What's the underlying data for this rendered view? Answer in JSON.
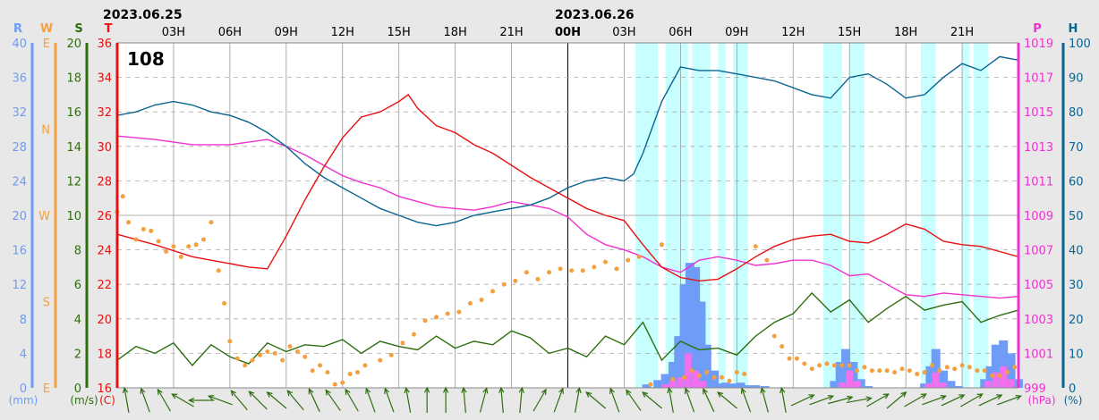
{
  "chart_data": {
    "type": "line",
    "station_id": "108",
    "dates": [
      "2023.06.25",
      "2023.06.26"
    ],
    "x_labels": [
      "03H",
      "06H",
      "09H",
      "12H",
      "15H",
      "18H",
      "21H",
      "00H",
      "03H",
      "06H",
      "09H",
      "12H",
      "15H",
      "18H",
      "21H"
    ],
    "x_hours": [
      3,
      6,
      9,
      12,
      15,
      18,
      21,
      24,
      27,
      30,
      33,
      36,
      39,
      42,
      45
    ],
    "x_range_hours": [
      0,
      48
    ],
    "axes": {
      "R": {
        "letter": "R",
        "unit": "(mm)",
        "ticks": [
          "40",
          "36",
          "32",
          "28",
          "24",
          "20",
          "16",
          "12",
          "8",
          "4",
          "0"
        ],
        "range": [
          0,
          40
        ],
        "color": "#6e9cf6"
      },
      "W": {
        "letter": "W",
        "unit": "",
        "ticks": [
          "E",
          "N",
          "W",
          "S",
          "E"
        ],
        "color": "#f4a040"
      },
      "S": {
        "letter": "S",
        "unit": "(m/s)",
        "ticks": [
          "20",
          "18",
          "16",
          "14",
          "12",
          "10",
          "8",
          "6",
          "4",
          "2",
          "0"
        ],
        "range": [
          0,
          20
        ],
        "color": "#2e6e0e"
      },
      "T": {
        "letter": "T",
        "unit": "(C)",
        "ticks": [
          "36",
          "34",
          "32",
          "30",
          "28",
          "26",
          "24",
          "22",
          "20",
          "18",
          "16"
        ],
        "range": [
          16,
          36
        ],
        "color": "#e81010"
      },
      "P": {
        "letter": "P",
        "unit": "(hPa)",
        "ticks": [
          "1019",
          "1017",
          "1015",
          "1013",
          "1011",
          "1009",
          "1007",
          "1005",
          "1003",
          "1001",
          "999"
        ],
        "range": [
          999,
          1019
        ],
        "color": "#f030d0"
      },
      "H": {
        "letter": "H",
        "unit": "(%)",
        "ticks": [
          "100",
          "90",
          "80",
          "70",
          "60",
          "50",
          "40",
          "30",
          "20",
          "10",
          "0"
        ],
        "range": [
          0,
          100
        ],
        "color": "#0a6490"
      }
    },
    "series": [
      {
        "key": "T",
        "name": "T",
        "color": "#e81010",
        "x": [
          0,
          2,
          4,
          6,
          7,
          8,
          9,
          10,
          11,
          12,
          13,
          14,
          15,
          15.5,
          16,
          17,
          18,
          19,
          20,
          21,
          22,
          23,
          24,
          25,
          26,
          27,
          28,
          29,
          30,
          31,
          32,
          33,
          34,
          35,
          36,
          37,
          38,
          39,
          40,
          41,
          42,
          43,
          44,
          45,
          46,
          47,
          48
        ],
        "y": [
          24.9,
          24.3,
          23.6,
          23.2,
          23.0,
          22.9,
          24.8,
          26.9,
          28.8,
          30.5,
          31.7,
          32.0,
          32.6,
          33.0,
          32.2,
          31.2,
          30.8,
          30.1,
          29.6,
          28.9,
          28.2,
          27.6,
          27.0,
          26.4,
          26.0,
          25.7,
          24.3,
          23.0,
          22.4,
          22.2,
          22.3,
          22.9,
          23.6,
          24.2,
          24.6,
          24.8,
          24.9,
          24.5,
          24.4,
          24.9,
          25.5,
          25.2,
          24.5,
          24.3,
          24.2,
          23.9,
          23.6
        ]
      },
      {
        "key": "H",
        "name": "H",
        "color": "#0a6490",
        "x": [
          0,
          1,
          2,
          3,
          4,
          5,
          6,
          7,
          8,
          9,
          10,
          11,
          12,
          13,
          14,
          15,
          16,
          17,
          18,
          19,
          20,
          21,
          22,
          23,
          24,
          25,
          26,
          27,
          27.5,
          28,
          29,
          30,
          31,
          32,
          33,
          34,
          35,
          36,
          37,
          38,
          39,
          40,
          41,
          42,
          43,
          44,
          45,
          46,
          47,
          48
        ],
        "y": [
          79,
          80,
          82,
          83,
          82,
          80,
          79,
          77,
          74,
          70,
          65,
          61,
          58,
          55,
          52,
          50,
          48,
          47,
          48,
          50,
          51,
          52,
          53,
          55,
          58,
          60,
          61,
          60,
          62,
          68,
          83,
          93,
          92,
          92,
          91,
          90,
          89,
          87,
          85,
          84,
          90,
          91,
          88,
          84,
          85,
          90,
          94,
          92,
          96,
          95
        ]
      },
      {
        "key": "P",
        "name": "P",
        "color": "#f030d0",
        "x": [
          0,
          2,
          4,
          6,
          8,
          9,
          10,
          11,
          12,
          13,
          14,
          15,
          16,
          17,
          18,
          19,
          20,
          21,
          22,
          23,
          24,
          25,
          26,
          27,
          28,
          29,
          30,
          31,
          32,
          33,
          34,
          35,
          36,
          37,
          38,
          39,
          40,
          41,
          42,
          43,
          44,
          45,
          46,
          47,
          48
        ],
        "y": [
          1013.6,
          1013.4,
          1013.1,
          1013.1,
          1013.4,
          1013.0,
          1012.5,
          1011.9,
          1011.3,
          1010.9,
          1010.6,
          1010.1,
          1009.8,
          1009.5,
          1009.4,
          1009.3,
          1009.5,
          1009.8,
          1009.6,
          1009.4,
          1008.9,
          1007.9,
          1007.3,
          1007.0,
          1006.6,
          1006.0,
          1005.7,
          1006.4,
          1006.6,
          1006.4,
          1006.1,
          1006.2,
          1006.4,
          1006.4,
          1006.1,
          1005.5,
          1005.6,
          1005.0,
          1004.4,
          1004.3,
          1004.5,
          1004.4,
          1004.3,
          1004.2,
          1004.3
        ]
      },
      {
        "key": "S",
        "name": "S",
        "color": "#2e6e0e",
        "x": [
          0,
          1,
          2,
          3,
          4,
          5,
          6,
          7,
          8,
          9,
          10,
          11,
          12,
          13,
          14,
          15,
          16,
          17,
          18,
          19,
          20,
          21,
          22,
          23,
          24,
          25,
          26,
          27,
          28,
          29,
          30,
          31,
          32,
          33,
          34,
          35,
          36,
          37,
          38,
          39,
          40,
          41,
          42,
          43,
          44,
          45,
          46,
          47,
          48
        ],
        "y": [
          1.6,
          2.4,
          2.0,
          2.6,
          1.3,
          2.5,
          1.8,
          1.4,
          2.6,
          2.1,
          2.5,
          2.4,
          2.8,
          2.0,
          2.7,
          2.4,
          2.2,
          3.0,
          2.3,
          2.7,
          2.5,
          3.3,
          2.9,
          2.0,
          2.3,
          1.8,
          3.0,
          2.5,
          3.8,
          1.6,
          2.7,
          2.2,
          2.3,
          1.9,
          3.0,
          3.8,
          4.3,
          5.5,
          4.4,
          5.1,
          3.8,
          4.6,
          5.3,
          4.5,
          4.8,
          5.0,
          3.8,
          4.2,
          4.5
        ]
      },
      {
        "key": "R",
        "name": "R",
        "color": "#6e9cf6",
        "x": [
          28.2,
          28.8,
          29.2,
          29.6,
          29.9,
          30.2,
          30.5,
          30.8,
          31.1,
          31.4,
          31.8,
          32.1,
          32.4,
          32.8,
          33.2,
          33.6,
          34.0,
          34.5,
          38.2,
          38.5,
          38.8,
          39.2,
          39.6,
          40.0,
          43.0,
          43.3,
          43.6,
          44.0,
          44.4,
          44.8,
          46.2,
          46.5,
          46.8,
          47.2,
          47.6,
          48.0
        ],
        "y": [
          0.4,
          0.9,
          1.6,
          3.0,
          6.0,
          12.0,
          14.5,
          14.0,
          10.0,
          5.0,
          2.0,
          0.5,
          0.6,
          0.5,
          0.6,
          0.3,
          0.3,
          0.2,
          0.8,
          3.0,
          4.5,
          3.0,
          1.0,
          0.2,
          0.5,
          2.5,
          4.5,
          2.0,
          0.8,
          0.2,
          1.0,
          2.5,
          5.0,
          5.5,
          4.0,
          1.0
        ]
      },
      {
        "key": "P",
        "name": "P",
        "kind": "rain_intensity",
        "color": "#f070ee",
        "x": [
          29.2,
          29.6,
          30.0,
          30.4,
          30.8,
          31.2,
          38.6,
          39.0,
          39.4,
          43.2,
          43.6,
          44.0,
          46.4,
          46.8,
          47.2,
          47.6
        ],
        "y": [
          0.4,
          0.8,
          1.2,
          4.0,
          2.0,
          0.8,
          0.6,
          2.0,
          0.8,
          0.5,
          1.8,
          0.6,
          0.8,
          1.8,
          2.5,
          1.0
        ]
      },
      {
        "key": "W",
        "name": "W",
        "kind": "wind_dir",
        "color": "#f4a040",
        "x": [
          0,
          0.3,
          0.6,
          1.0,
          1.4,
          1.8,
          2.2,
          2.6,
          3.0,
          3.4,
          3.8,
          4.2,
          4.6,
          5.0,
          5.4,
          5.7,
          6.0,
          6.4,
          6.8,
          7.2,
          7.6,
          8.0,
          8.4,
          8.8,
          9.2,
          9.6,
          10.0,
          10.4,
          10.8,
          11.2,
          11.6,
          12.0,
          12.4,
          12.8,
          13.2,
          14.0,
          14.6,
          15.2,
          15.8,
          16.4,
          17.0,
          17.6,
          18.2,
          18.8,
          19.4,
          20.0,
          20.6,
          21.2,
          21.8,
          22.4,
          23.0,
          23.6,
          24.2,
          24.8,
          25.4,
          26.0,
          26.6,
          27.2,
          27.8,
          28.4,
          29.0,
          29.6,
          30.2,
          30.6,
          31.0,
          31.4,
          31.8,
          32.2,
          32.6,
          33.0,
          33.4,
          34.0,
          34.6,
          35.0,
          35.4,
          35.8,
          36.2,
          36.6,
          37.0,
          37.4,
          37.8,
          38.2,
          38.6,
          39.0,
          39.4,
          39.8,
          40.2,
          40.6,
          41.0,
          41.4,
          41.8,
          42.2,
          42.6,
          43.0,
          43.4,
          43.8,
          44.2,
          44.6,
          45.0,
          45.4,
          45.8,
          46.2,
          46.6,
          47.0,
          47.4,
          47.8
        ],
        "y": [
          10.2,
          11.1,
          9.6,
          8.6,
          9.2,
          9.1,
          8.5,
          7.9,
          8.2,
          7.6,
          8.2,
          8.3,
          8.6,
          9.6,
          6.8,
          4.9,
          2.7,
          1.7,
          1.3,
          1.6,
          1.9,
          2.1,
          2.0,
          1.6,
          2.4,
          2.1,
          1.8,
          1.0,
          1.3,
          0.9,
          0.2,
          0.3,
          0.8,
          0.9,
          1.3,
          1.6,
          1.9,
          2.6,
          3.1,
          3.9,
          4.1,
          4.3,
          4.4,
          4.9,
          5.1,
          5.6,
          6.0,
          6.2,
          6.7,
          6.3,
          6.7,
          6.9,
          6.8,
          6.8,
          7.0,
          7.3,
          6.9,
          7.4,
          7.6,
          0.2,
          8.3,
          0.5,
          0.6,
          1.0,
          0.7,
          0.9,
          0.6,
          0.6,
          0.4,
          0.9,
          0.8,
          8.2,
          7.4,
          3.0,
          2.4,
          1.7,
          1.7,
          1.4,
          1.1,
          1.3,
          1.4,
          1.3,
          1.3,
          1.3,
          1.0,
          1.2,
          1.0,
          1.0,
          1.0,
          0.9,
          1.1,
          1.0,
          0.8,
          0.9,
          1.3,
          1.0,
          1.2,
          1.1,
          1.3,
          1.2,
          1.0,
          1.0,
          0.7,
          0.7,
          0.9,
          1.2
        ]
      }
    ],
    "humid_bands": [
      [
        27.6,
        28.8
      ],
      [
        29.2,
        30.4
      ],
      [
        30.6,
        31.6
      ],
      [
        32.0,
        32.4
      ],
      [
        32.8,
        33.6
      ],
      [
        37.6,
        38.6
      ],
      [
        39.0,
        39.8
      ],
      [
        42.8,
        43.6
      ],
      [
        45.0,
        45.4
      ],
      [
        45.6,
        46.4
      ]
    ],
    "wind_arrows_deg": [
      260,
      250,
      240,
      210,
      180,
      200,
      230,
      225,
      220,
      230,
      245,
      235,
      240,
      250,
      250,
      260,
      270,
      270,
      265,
      285,
      265,
      275,
      300,
      290,
      280,
      220,
      250,
      235,
      220,
      260,
      250,
      245,
      220,
      250,
      255,
      260,
      335,
      340,
      345,
      350,
      330,
      320,
      330,
      340,
      335,
      330,
      335,
      340
    ]
  }
}
